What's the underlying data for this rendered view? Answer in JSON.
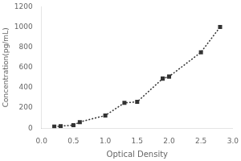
{
  "chart_data": {
    "type": "line",
    "x": [
      0.2,
      0.3,
      0.5,
      0.6,
      1.0,
      1.3,
      1.5,
      1.9,
      2.0,
      2.5,
      2.8
    ],
    "values": [
      15,
      20,
      30,
      60,
      125,
      250,
      260,
      490,
      510,
      750,
      1000
    ],
    "xlabel": "Optical Density",
    "ylabel": "Concentration(pg/mL)",
    "xlim": [
      0,
      3
    ],
    "ylim": [
      0,
      1200
    ],
    "xticks": [
      {
        "value": 0,
        "label": "0.0"
      },
      {
        "value": 0.5,
        "label": "0.5"
      },
      {
        "value": 1,
        "label": "1.0"
      },
      {
        "value": 1.5,
        "label": "1.5"
      },
      {
        "value": 2,
        "label": "2.0"
      },
      {
        "value": 2.5,
        "label": "2.5"
      },
      {
        "value": 3,
        "label": "3.0"
      }
    ],
    "yticks": [
      0,
      200,
      400,
      600,
      800,
      1000,
      1200
    ],
    "color": "#333333",
    "marker": "square",
    "line_style": "dotted",
    "grid": false
  }
}
